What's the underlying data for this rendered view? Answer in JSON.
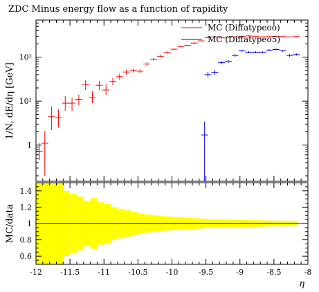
{
  "chart_data": [
    {
      "type": "scatter",
      "title": "ZDC Minus energy flow as a function of rapidity",
      "ylabel": "1/N, dE/dη [GeV]",
      "xlabel": "η",
      "xlim": [
        -12,
        -8
      ],
      "ylim": [
        0.15,
        700
      ],
      "yscale": "log",
      "x_ticks": [
        -12,
        -11.5,
        -11,
        -10.5,
        -10,
        -9.5,
        -9,
        -8.5,
        -8
      ],
      "x_tick_labels": [
        "-12",
        "-11.5",
        "-11",
        "-10.5",
        "-10",
        "-9.5",
        "-9",
        "-8.5",
        "-8"
      ],
      "y_tick_labels": [
        "1",
        "10¹",
        "10²"
      ],
      "y_ticks": [
        1,
        10,
        100
      ],
      "legend_position": "top-right",
      "series": [
        {
          "name": "MC (Diffatypeoo)",
          "color": "#ff0000",
          "points": [
            {
              "x": -11.95,
              "y": 0.72,
              "lo": 0.45,
              "hi": 1.1
            },
            {
              "x": -11.87,
              "y": 1.1,
              "lo": 0.2,
              "hi": 2.1
            },
            {
              "x": -11.77,
              "y": 4.5,
              "lo": 2.2,
              "hi": 7.5
            },
            {
              "x": -11.67,
              "y": 4.2,
              "lo": 2.5,
              "hi": 6.5
            },
            {
              "x": -11.57,
              "y": 9,
              "lo": 6,
              "hi": 13
            },
            {
              "x": -11.47,
              "y": 9,
              "lo": 6,
              "hi": 12
            },
            {
              "x": -11.37,
              "y": 11,
              "lo": 8,
              "hi": 14
            },
            {
              "x": -11.27,
              "y": 24,
              "lo": 18,
              "hi": 30
            },
            {
              "x": -11.17,
              "y": 12,
              "lo": 9,
              "hi": 17
            },
            {
              "x": -11.07,
              "y": 23,
              "lo": 18,
              "hi": 29
            },
            {
              "x": -10.97,
              "y": 18,
              "lo": 14,
              "hi": 24
            },
            {
              "x": -10.87,
              "y": 28,
              "lo": 23,
              "hi": 34
            },
            {
              "x": -10.77,
              "y": 36,
              "lo": 31,
              "hi": 42
            },
            {
              "x": -10.67,
              "y": 46,
              "lo": 40,
              "hi": 52
            },
            {
              "x": -10.57,
              "y": 50,
              "lo": 45,
              "hi": 55
            },
            {
              "x": -10.47,
              "y": 48,
              "lo": 43,
              "hi": 53
            },
            {
              "x": -10.37,
              "y": 70,
              "lo": 64,
              "hi": 76
            },
            {
              "x": -10.27,
              "y": 90,
              "lo": 84,
              "hi": 97
            },
            {
              "x": -10.17,
              "y": 105,
              "lo": 99,
              "hi": 112
            },
            {
              "x": -10.07,
              "y": 128,
              "lo": 121,
              "hi": 135
            },
            {
              "x": -9.97,
              "y": 152,
              "lo": 145,
              "hi": 159
            },
            {
              "x": -9.87,
              "y": 175,
              "lo": 168,
              "hi": 182
            },
            {
              "x": -9.77,
              "y": 185,
              "lo": 178,
              "hi": 192
            },
            {
              "x": -9.67,
              "y": 210,
              "lo": 203,
              "hi": 217
            },
            {
              "x": -9.57,
              "y": 235,
              "lo": 228,
              "hi": 242
            },
            {
              "x": -9.47,
              "y": 280,
              "lo": 272,
              "hi": 288
            },
            {
              "x": -9.37,
              "y": 290,
              "lo": 282,
              "hi": 298
            },
            {
              "x": -9.27,
              "y": 275,
              "lo": 267,
              "hi": 283
            },
            {
              "x": -9.17,
              "y": 285,
              "lo": 277,
              "hi": 293
            },
            {
              "x": -9.07,
              "y": 290,
              "lo": 282,
              "hi": 298
            },
            {
              "x": -8.97,
              "y": 300,
              "lo": 292,
              "hi": 308
            },
            {
              "x": -8.87,
              "y": 305,
              "lo": 297,
              "hi": 313
            },
            {
              "x": -8.77,
              "y": 300,
              "lo": 292,
              "hi": 308
            },
            {
              "x": -8.67,
              "y": 290,
              "lo": 282,
              "hi": 298
            },
            {
              "x": -8.57,
              "y": 295,
              "lo": 287,
              "hi": 303
            },
            {
              "x": -8.47,
              "y": 300,
              "lo": 292,
              "hi": 308
            },
            {
              "x": -8.37,
              "y": 295,
              "lo": 287,
              "hi": 303
            },
            {
              "x": -8.27,
              "y": 290,
              "lo": 282,
              "hi": 298
            },
            {
              "x": -8.17,
              "y": 295,
              "lo": 287,
              "hi": 303
            }
          ]
        },
        {
          "name": "MC (Diffatypeo5)",
          "color": "#0000ff",
          "points": [
            {
              "x": -9.52,
              "y": 1.7,
              "lo": 0.15,
              "hi": 3.4
            },
            {
              "x": -9.47,
              "y": 40,
              "lo": 35,
              "hi": 46
            },
            {
              "x": -9.37,
              "y": 45,
              "lo": 39,
              "hi": 51
            },
            {
              "x": -9.27,
              "y": 75,
              "lo": 69,
              "hi": 81
            },
            {
              "x": -9.17,
              "y": 80,
              "lo": 74,
              "hi": 86
            },
            {
              "x": -9.07,
              "y": 110,
              "lo": 103,
              "hi": 117
            },
            {
              "x": -8.97,
              "y": 140,
              "lo": 133,
              "hi": 147
            },
            {
              "x": -8.87,
              "y": 130,
              "lo": 123,
              "hi": 137
            },
            {
              "x": -8.77,
              "y": 130,
              "lo": 123,
              "hi": 137
            },
            {
              "x": -8.67,
              "y": 130,
              "lo": 123,
              "hi": 137
            },
            {
              "x": -8.57,
              "y": 145,
              "lo": 138,
              "hi": 152
            },
            {
              "x": -8.47,
              "y": 150,
              "lo": 143,
              "hi": 157
            },
            {
              "x": -8.37,
              "y": 140,
              "lo": 133,
              "hi": 147
            },
            {
              "x": -8.27,
              "y": 110,
              "lo": 103,
              "hi": 117
            },
            {
              "x": -8.17,
              "y": 115,
              "lo": 108,
              "hi": 122
            }
          ]
        }
      ]
    },
    {
      "type": "area",
      "ylabel": "MC/data",
      "xlabel": "η",
      "xlim": [
        -12,
        -8
      ],
      "ylim": [
        0.5,
        1.5
      ],
      "y_ticks": [
        0.6,
        0.8,
        1,
        1.2,
        1.4
      ],
      "y_tick_labels": [
        "0.6",
        "0.8",
        "1",
        "1.2",
        "1.4"
      ],
      "x_ticks": [
        -12,
        -11.5,
        -11,
        -10.5,
        -10,
        -9.5,
        -9,
        -8.5,
        -8
      ],
      "x_tick_labels": [
        "-12",
        "-11.5",
        "-11",
        "-10.5",
        "-10",
        "-9.5",
        "-9",
        "-8.5",
        "-8"
      ],
      "reference_line": 1,
      "band_color": "#ffff00",
      "band": {
        "x_edges": [
          -12,
          -11.6,
          -11.5,
          -11.4,
          -11.3,
          -11.2,
          -11.1,
          -11.0,
          -10.9,
          -10.8,
          -10.7,
          -10.6,
          -10.5,
          -10.4,
          -10.3,
          -10.2,
          -10.1,
          -10.0,
          -9.9,
          -9.8,
          -9.7,
          -9.6,
          -9.5,
          -9.4,
          -9.3,
          -9.2,
          -9.1,
          -9.0,
          -8.9,
          -8.8,
          -8.7,
          -8.6,
          -8.5,
          -8.4,
          -8.3,
          -8.2,
          -8.15
        ],
        "half_widths": [
          0.6,
          0.4,
          0.36,
          0.33,
          0.28,
          0.31,
          0.26,
          0.24,
          0.2,
          0.18,
          0.16,
          0.14,
          0.12,
          0.11,
          0.1,
          0.09,
          0.085,
          0.08,
          0.075,
          0.07,
          0.065,
          0.06,
          0.055,
          0.05,
          0.048,
          0.046,
          0.044,
          0.042,
          0.04,
          0.04,
          0.038,
          0.036,
          0.035,
          0.034,
          0.033,
          0.032
        ]
      }
    }
  ]
}
